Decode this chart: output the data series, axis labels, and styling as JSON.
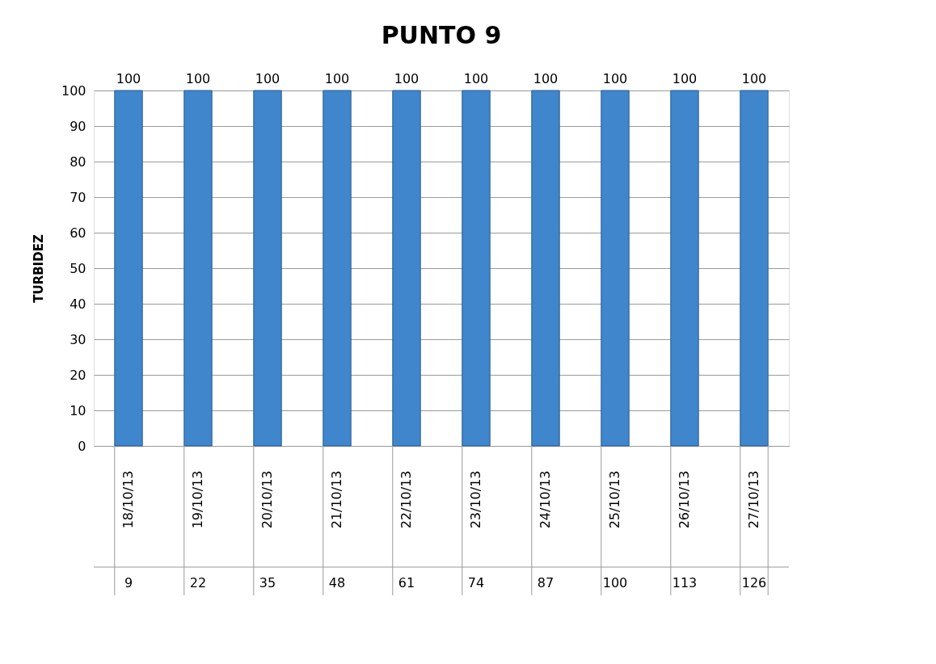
{
  "chart_data": {
    "type": "bar",
    "title": "PUNTO 9",
    "ylabel": "TURBIDEZ",
    "categories": [
      "18/10/13",
      "19/10/13",
      "20/10/13",
      "21/10/13",
      "22/10/13",
      "23/10/13",
      "24/10/13",
      "25/10/13",
      "26/10/13",
      "27/10/13"
    ],
    "values": [
      100,
      100,
      100,
      100,
      100,
      100,
      100,
      100,
      100,
      100
    ],
    "color": "#3f86cc",
    "ylim": [
      0,
      100
    ],
    "yticks": [
      0,
      10,
      20,
      30,
      40,
      50,
      60,
      70,
      80,
      90,
      100
    ],
    "grid": "y",
    "data_labels": true,
    "annotations": [
      "9",
      "22",
      "35",
      "48",
      "61",
      "74",
      "87",
      "100",
      "113",
      "126"
    ]
  }
}
